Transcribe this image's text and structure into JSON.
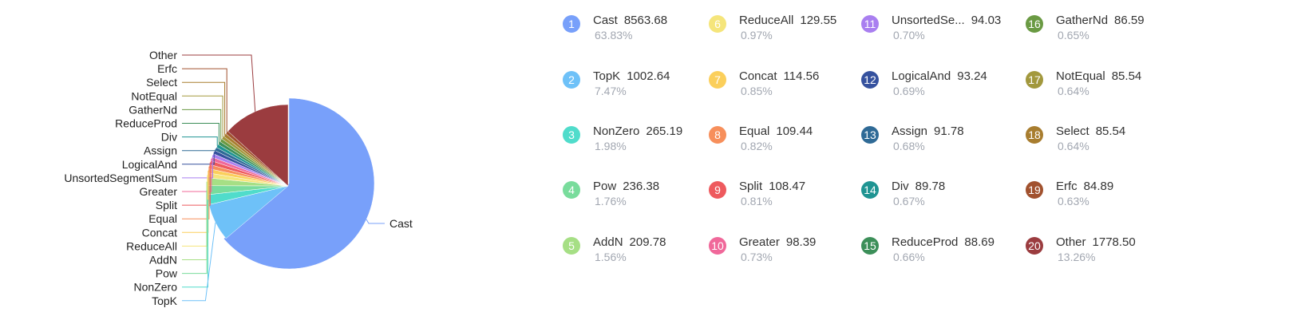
{
  "chart_data": {
    "type": "pie",
    "legend_placement": "right",
    "slices": [
      {
        "index": "1",
        "label": "Cast",
        "legend_name": "Cast",
        "value": 8563.68,
        "value_text": "8563.68",
        "percent": "63.83%",
        "color": "#78a0fa"
      },
      {
        "index": "2",
        "label": "TopK",
        "legend_name": "TopK",
        "value": 1002.64,
        "value_text": "1002.64",
        "percent": "7.47%",
        "color": "#6ec1f8"
      },
      {
        "index": "3",
        "label": "NonZero",
        "legend_name": "NonZero",
        "value": 265.19,
        "value_text": "265.19",
        "percent": "1.98%",
        "color": "#50dccb"
      },
      {
        "index": "4",
        "label": "Pow",
        "legend_name": "Pow",
        "value": 236.38,
        "value_text": "236.38",
        "percent": "1.76%",
        "color": "#79dc9c"
      },
      {
        "index": "5",
        "label": "AddN",
        "legend_name": "AddN",
        "value": 209.78,
        "value_text": "209.78",
        "percent": "1.56%",
        "color": "#a6df85"
      },
      {
        "index": "6",
        "label": "ReduceAll",
        "legend_name": "ReduceAll",
        "value": 129.55,
        "value_text": "129.55",
        "percent": "0.97%",
        "color": "#f5e57b"
      },
      {
        "index": "7",
        "label": "Concat",
        "legend_name": "Concat",
        "value": 114.56,
        "value_text": "114.56",
        "percent": "0.85%",
        "color": "#fbcf5b"
      },
      {
        "index": "8",
        "label": "Equal",
        "legend_name": "Equal",
        "value": 109.44,
        "value_text": "109.44",
        "percent": "0.82%",
        "color": "#f78f5b"
      },
      {
        "index": "9",
        "label": "Split",
        "legend_name": "Split",
        "value": 108.47,
        "value_text": "108.47",
        "percent": "0.81%",
        "color": "#ee5a5e"
      },
      {
        "index": "10",
        "label": "Greater",
        "legend_name": "Greater",
        "value": 98.39,
        "value_text": "98.39",
        "percent": "0.73%",
        "color": "#f0689a"
      },
      {
        "index": "11",
        "label": "UnsortedSegmentSum",
        "legend_name": "UnsortedSe...",
        "value": 94.03,
        "value_text": "94.03",
        "percent": "0.70%",
        "color": "#a97ff0"
      },
      {
        "index": "12",
        "label": "LogicalAnd",
        "legend_name": "LogicalAnd",
        "value": 93.24,
        "value_text": "93.24",
        "percent": "0.69%",
        "color": "#35519e"
      },
      {
        "index": "13",
        "label": "Assign",
        "legend_name": "Assign",
        "value": 91.78,
        "value_text": "91.78",
        "percent": "0.68%",
        "color": "#2f6a96"
      },
      {
        "index": "14",
        "label": "Div",
        "legend_name": "Div",
        "value": 89.78,
        "value_text": "89.78",
        "percent": "0.67%",
        "color": "#1f9492"
      },
      {
        "index": "15",
        "label": "ReduceProd",
        "legend_name": "ReduceProd",
        "value": 88.69,
        "value_text": "88.69",
        "percent": "0.66%",
        "color": "#3c8f59"
      },
      {
        "index": "16",
        "label": "GatherNd",
        "legend_name": "GatherNd",
        "value": 86.59,
        "value_text": "86.59",
        "percent": "0.65%",
        "color": "#6a9a43"
      },
      {
        "index": "17",
        "label": "NotEqual",
        "legend_name": "NotEqual",
        "value": 85.54,
        "value_text": "85.54",
        "percent": "0.64%",
        "color": "#a2983d"
      },
      {
        "index": "18",
        "label": "Select",
        "legend_name": "Select",
        "value": 85.54,
        "value_text": "85.54",
        "percent": "0.64%",
        "color": "#a87d2f"
      },
      {
        "index": "19",
        "label": "Erfc",
        "legend_name": "Erfc",
        "value": 84.89,
        "value_text": "84.89",
        "percent": "0.63%",
        "color": "#a1512e"
      },
      {
        "index": "20",
        "label": "Other",
        "legend_name": "Other",
        "value": 1778.5,
        "value_text": "1778.50",
        "percent": "13.26%",
        "color": "#9b3c3f"
      }
    ]
  }
}
